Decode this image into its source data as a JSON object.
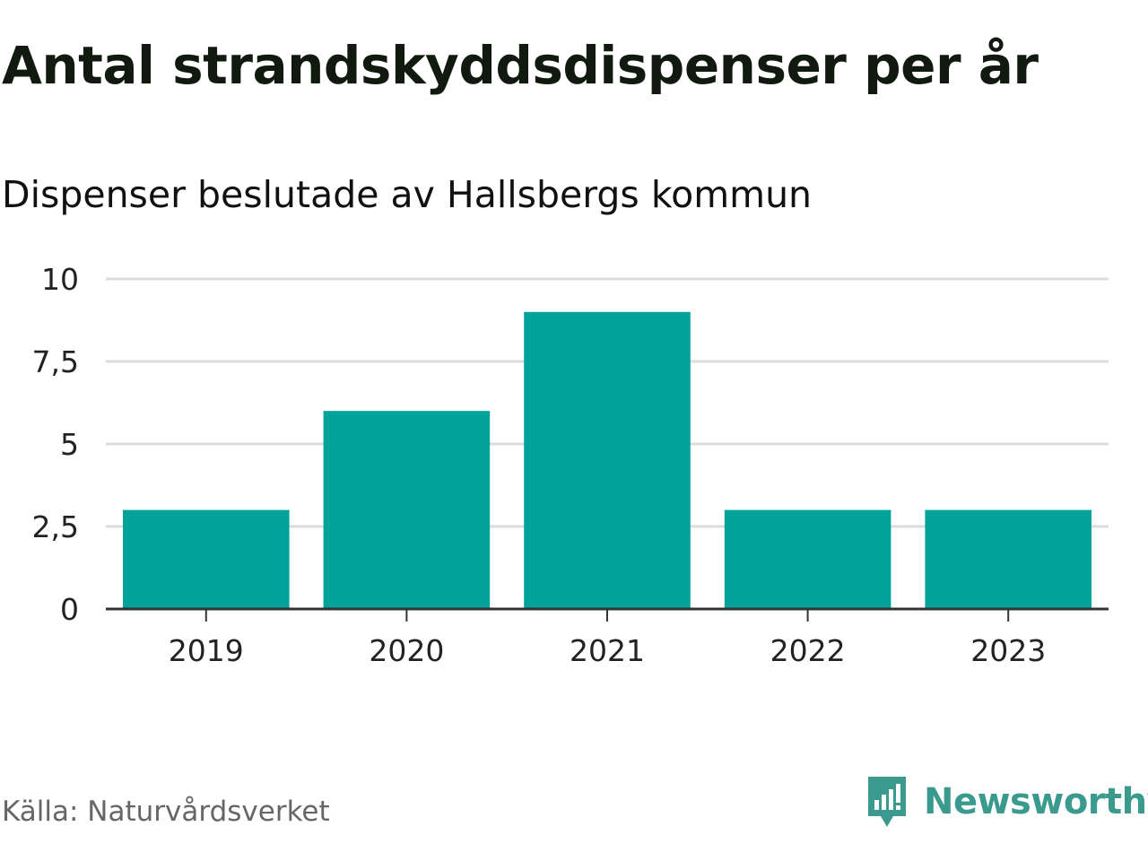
{
  "chart_data": {
    "type": "bar",
    "title": "Antal strandskyddsdispenser per år",
    "subtitle": "Dispenser beslutade av Hallsbergs kommun",
    "categories": [
      "2019",
      "2020",
      "2021",
      "2022",
      "2023"
    ],
    "values": [
      3,
      6,
      9,
      3,
      3
    ],
    "xlabel": "",
    "ylabel": "",
    "ylim": [
      0,
      10
    ],
    "yticks": [
      0,
      2.5,
      5,
      7.5,
      10
    ],
    "ytick_labels": [
      "0",
      "2,5",
      "5",
      "7,5",
      "10"
    ],
    "grid": true,
    "bar_color": "#00a39a"
  },
  "source": "Källa: Naturvårdsverket",
  "brand": {
    "name": "Newsworthy",
    "icon": "newsworthy-logo-icon",
    "color": "#3a9a8d"
  }
}
